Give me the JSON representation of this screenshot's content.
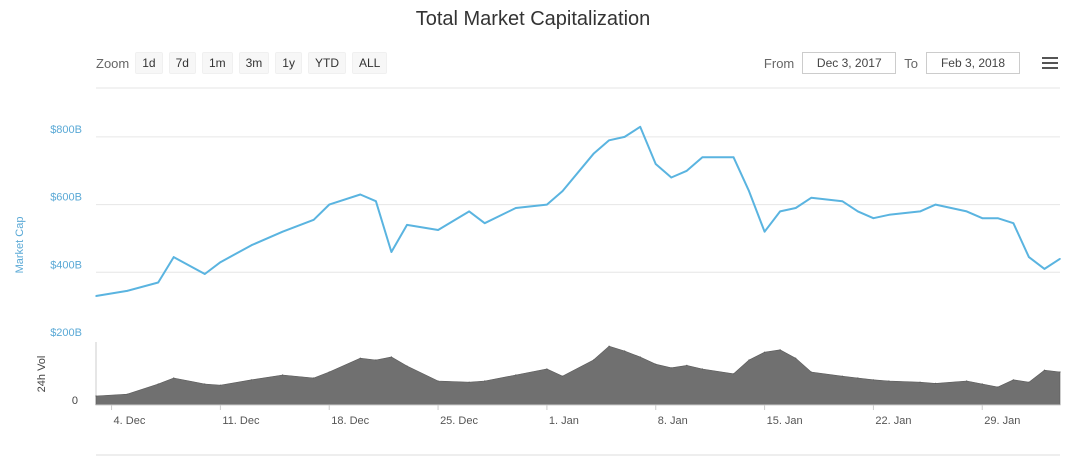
{
  "title": "Total Market Capitalization",
  "zoom": {
    "label": "Zoom",
    "buttons": [
      "1d",
      "7d",
      "1m",
      "3m",
      "1y",
      "YTD",
      "ALL"
    ]
  },
  "range": {
    "from_label": "From",
    "from_value": "Dec 3, 2017",
    "to_label": "To",
    "to_value": "Feb 3, 2018"
  },
  "menu_icon": "hamburger-menu-icon",
  "colors": {
    "line": "#5ab4e0",
    "volume": "#707070",
    "axis_label": "#5aa9d6"
  },
  "chart_data": [
    {
      "type": "line",
      "title": "Total Market Capitalization",
      "ylabel": "Market Cap",
      "ylim": [
        200,
        850
      ],
      "yticks": [
        "$200B",
        "$400B",
        "$600B",
        "$800B"
      ],
      "ytick_values": [
        200,
        400,
        600,
        800
      ],
      "x_range": [
        "2017-12-03",
        "2018-02-03"
      ],
      "x": [
        "2017-12-03",
        "2017-12-05",
        "2017-12-07",
        "2017-12-08",
        "2017-12-10",
        "2017-12-11",
        "2017-12-13",
        "2017-12-15",
        "2017-12-17",
        "2017-12-18",
        "2017-12-20",
        "2017-12-21",
        "2017-12-22",
        "2017-12-23",
        "2017-12-25",
        "2017-12-27",
        "2017-12-28",
        "2017-12-30",
        "2018-01-01",
        "2018-01-02",
        "2018-01-04",
        "2018-01-05",
        "2018-01-06",
        "2018-01-07",
        "2018-01-08",
        "2018-01-09",
        "2018-01-10",
        "2018-01-11",
        "2018-01-13",
        "2018-01-14",
        "2018-01-15",
        "2018-01-16",
        "2018-01-17",
        "2018-01-18",
        "2018-01-20",
        "2018-01-21",
        "2018-01-22",
        "2018-01-23",
        "2018-01-25",
        "2018-01-26",
        "2018-01-28",
        "2018-01-29",
        "2018-01-30",
        "2018-01-31",
        "2018-02-01",
        "2018-02-02",
        "2018-02-03"
      ],
      "values": [
        330,
        345,
        370,
        445,
        395,
        430,
        480,
        520,
        555,
        600,
        630,
        610,
        460,
        540,
        525,
        580,
        545,
        590,
        600,
        640,
        750,
        790,
        800,
        830,
        720,
        680,
        700,
        740,
        740,
        640,
        520,
        580,
        590,
        620,
        610,
        580,
        560,
        570,
        580,
        600,
        580,
        560,
        560,
        545,
        445,
        410,
        440
      ],
      "xtick_labels": [
        "4. Dec",
        "11. Dec",
        "18. Dec",
        "25. Dec",
        "1. Jan",
        "8. Jan",
        "15. Jan",
        "22. Jan",
        "29. Jan"
      ],
      "xtick_dates": [
        "2017-12-04",
        "2017-12-11",
        "2017-12-18",
        "2017-12-25",
        "2018-01-01",
        "2018-01-08",
        "2018-01-15",
        "2018-01-22",
        "2018-01-29"
      ],
      "grid": true
    },
    {
      "type": "area",
      "ylabel": "24h Vol",
      "yticks": [
        "0"
      ],
      "x_range": [
        "2017-12-03",
        "2018-02-03"
      ],
      "x": [
        "2017-12-03",
        "2017-12-05",
        "2017-12-07",
        "2017-12-08",
        "2017-12-10",
        "2017-12-11",
        "2017-12-13",
        "2017-12-15",
        "2017-12-17",
        "2017-12-18",
        "2017-12-20",
        "2017-12-21",
        "2017-12-22",
        "2017-12-23",
        "2017-12-25",
        "2017-12-27",
        "2017-12-28",
        "2017-12-30",
        "2018-01-01",
        "2018-01-02",
        "2018-01-04",
        "2018-01-05",
        "2018-01-06",
        "2018-01-07",
        "2018-01-08",
        "2018-01-09",
        "2018-01-10",
        "2018-01-11",
        "2018-01-13",
        "2018-01-14",
        "2018-01-15",
        "2018-01-16",
        "2018-01-17",
        "2018-01-18",
        "2018-01-20",
        "2018-01-21",
        "2018-01-22",
        "2018-01-23",
        "2018-01-25",
        "2018-01-26",
        "2018-01-28",
        "2018-01-29",
        "2018-01-30",
        "2018-01-31",
        "2018-02-01",
        "2018-02-02",
        "2018-02-03"
      ],
      "values": [
        0.15,
        0.18,
        0.35,
        0.45,
        0.35,
        0.33,
        0.42,
        0.5,
        0.45,
        0.55,
        0.78,
        0.75,
        0.8,
        0.65,
        0.4,
        0.38,
        0.4,
        0.5,
        0.6,
        0.48,
        0.75,
        0.98,
        0.9,
        0.8,
        0.68,
        0.62,
        0.66,
        0.6,
        0.52,
        0.75,
        0.88,
        0.92,
        0.78,
        0.55,
        0.48,
        0.45,
        0.42,
        0.4,
        0.38,
        0.36,
        0.4,
        0.35,
        0.3,
        0.42,
        0.38,
        0.58,
        0.55
      ]
    }
  ]
}
